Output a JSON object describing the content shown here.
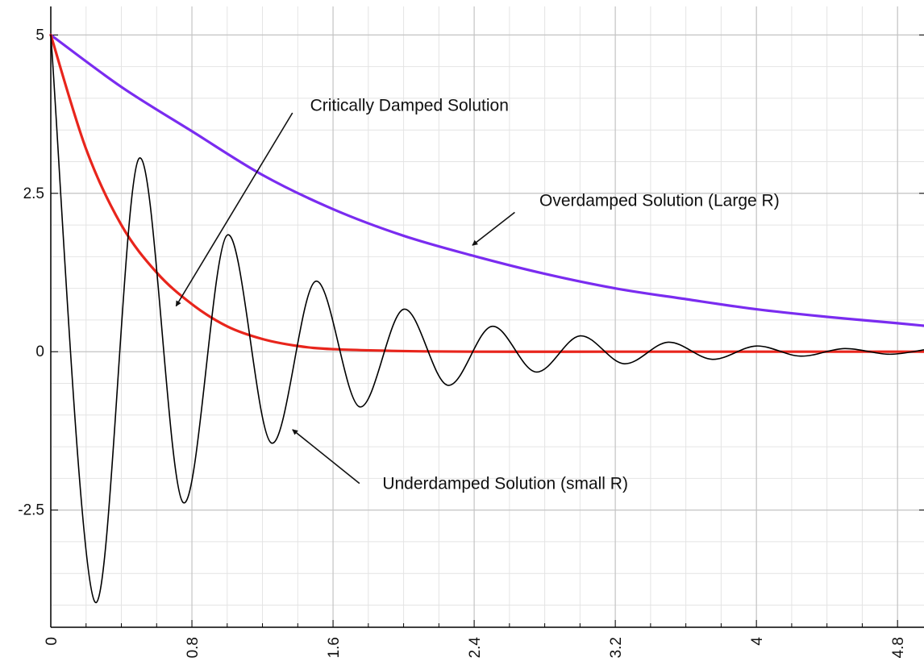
{
  "chart_data": {
    "type": "line",
    "title": "",
    "xlabel": "",
    "ylabel": "",
    "xlim": [
      0,
      4.95
    ],
    "ylim": [
      -4.35,
      5.45
    ],
    "x_ticks": [
      0,
      0.8,
      1.6,
      2.4,
      3.2,
      4,
      4.8
    ],
    "x_tick_labels": [
      "0",
      "0.8",
      "1.6",
      "2.4",
      "3.2",
      "4",
      "4.8"
    ],
    "y_ticks": [
      5,
      2.5,
      0,
      -2.5
    ],
    "y_tick_labels": [
      "5",
      "2.5",
      "0",
      "-2.5"
    ],
    "grid": true,
    "series": [
      {
        "color": "#7a2cf0",
        "x": [
          0,
          0.4,
          0.8,
          1.2,
          1.6,
          2.0,
          2.4,
          2.8,
          3.2,
          3.6,
          4.0,
          4.4,
          4.8,
          4.95
        ],
        "values": [
          5.0,
          4.18,
          3.48,
          2.79,
          2.25,
          1.83,
          1.51,
          1.23,
          1.0,
          0.83,
          0.67,
          0.55,
          0.45,
          0.41
        ]
      },
      {
        "color": "#e8251c",
        "x": [
          0,
          0.2,
          0.4,
          0.6,
          0.8,
          1.0,
          1.2,
          1.4,
          1.6,
          2.0,
          2.4,
          3.2,
          4.0,
          4.95
        ],
        "values": [
          5.0,
          3.2,
          2.0,
          1.25,
          0.75,
          0.4,
          0.2,
          0.09,
          0.04,
          0.01,
          0.0,
          0.0,
          0.0,
          0.0
        ]
      },
      {
        "color": "#000000",
        "x": [
          0,
          0.25,
          0.5,
          0.75,
          1.0,
          1.25,
          1.5,
          1.75,
          2.0,
          2.25,
          2.5,
          2.75,
          3.0,
          3.25,
          3.5,
          3.75,
          4.0,
          4.25,
          4.5,
          4.75,
          4.95
        ],
        "values": [
          5.0,
          -3.95,
          3.05,
          -2.38,
          1.84,
          -1.44,
          1.11,
          -0.87,
          0.67,
          -0.53,
          0.4,
          -0.32,
          0.25,
          -0.19,
          0.15,
          -0.12,
          0.09,
          -0.07,
          0.05,
          -0.04,
          0.03
        ]
      }
    ],
    "annotations": [
      {
        "text": "Critically Damped Solution",
        "x": 1.47,
        "y": 3.8,
        "arrow_from": [
          1.37,
          3.77
        ],
        "arrow_to": [
          0.71,
          0.72
        ]
      },
      {
        "text": "Overdamped Solution (Large R)",
        "x": 2.77,
        "y": 2.3,
        "arrow_from": [
          2.63,
          2.2
        ],
        "arrow_to": [
          2.39,
          1.68
        ]
      },
      {
        "text": "Underdamped Solution (small R)",
        "x": 1.88,
        "y": -2.17,
        "arrow_from": [
          1.75,
          -2.08
        ],
        "arrow_to": [
          1.37,
          -1.23
        ]
      }
    ]
  }
}
